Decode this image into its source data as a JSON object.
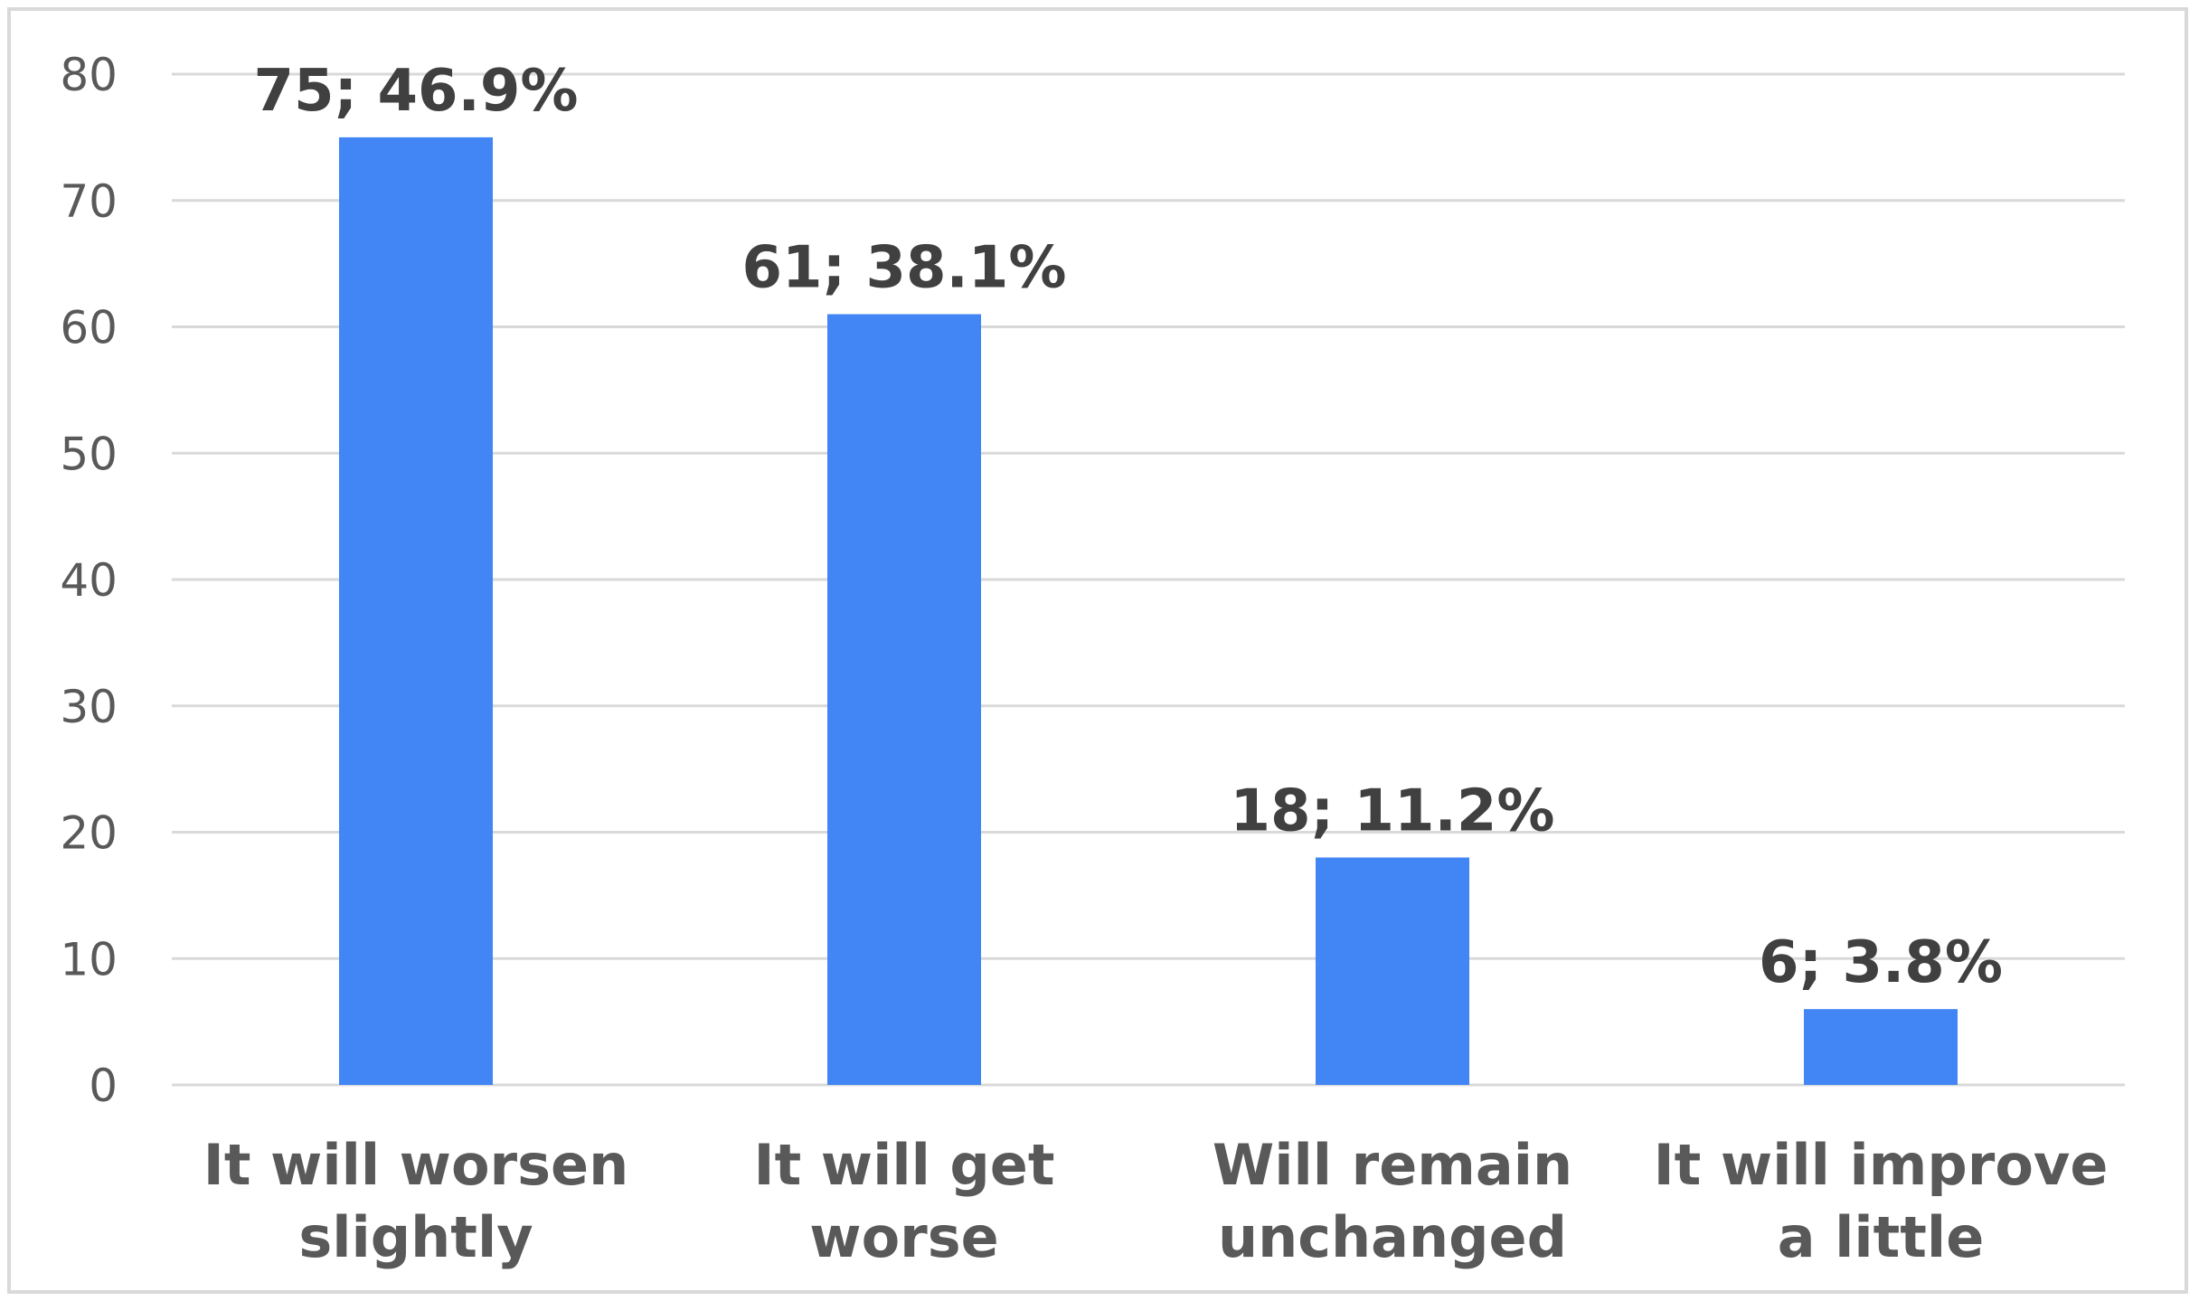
{
  "chart_data": {
    "type": "bar",
    "categories": [
      [
        "It will worsen",
        "slightly"
      ],
      [
        "It will get",
        "worse"
      ],
      [
        "Will remain",
        "unchanged"
      ],
      [
        "It will improve",
        "a little"
      ]
    ],
    "values": [
      75,
      61,
      18,
      6
    ],
    "data_labels": [
      "75;  46.9%",
      "61; 38.1%",
      "18; 11.2%",
      "6; 3.8%"
    ],
    "ylim": [
      0,
      80
    ],
    "yticks": [
      0,
      10,
      20,
      30,
      40,
      50,
      60,
      70,
      80
    ],
    "grid": true,
    "legend": "none",
    "title": "",
    "xlabel": "",
    "ylabel": "",
    "colors": {
      "bar": "#4285f4",
      "grid": "#d9d9d9",
      "tick_text": "#595959",
      "label_text": "#404040"
    }
  }
}
